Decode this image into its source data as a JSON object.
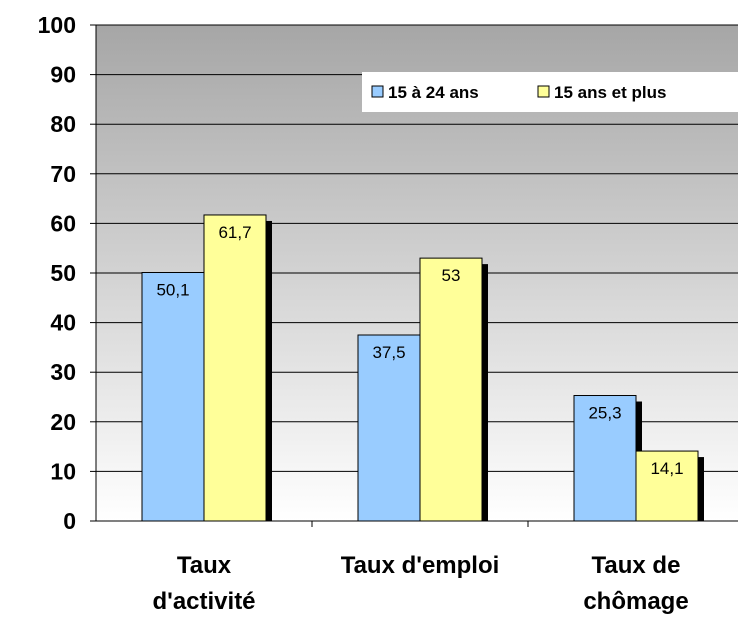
{
  "chart_data": {
    "type": "bar",
    "categories": [
      [
        "Taux",
        "d'activité"
      ],
      [
        "Taux d'emploi"
      ],
      [
        "Taux de",
        "chômage"
      ]
    ],
    "series": [
      {
        "name": "15 à 24 ans",
        "values": [
          50.1,
          37.5,
          25.3
        ],
        "labels": [
          "50,1",
          "37,5",
          "25,3"
        ],
        "color": "#99ccff"
      },
      {
        "name": "15 ans et plus",
        "values": [
          61.7,
          53,
          14.1
        ],
        "labels": [
          "61,7",
          "53",
          "14,1"
        ],
        "color": "#ffff99"
      }
    ],
    "y_ticks": [
      "0",
      "10",
      "20",
      "30",
      "40",
      "50",
      "60",
      "70",
      "80",
      "90",
      "100"
    ],
    "ylim": [
      0,
      100
    ],
    "grid": true,
    "legend_position": "top-right",
    "colors": {
      "plot_top": "#a6a6a6",
      "plot_bottom": "#ffffff",
      "shadow": "#000000"
    }
  }
}
